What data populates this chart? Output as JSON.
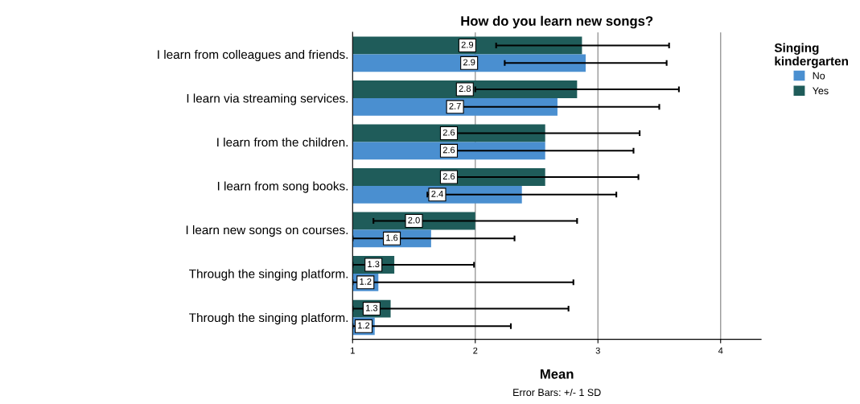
{
  "chart_data": {
    "type": "bar",
    "orientation": "horizontal",
    "title": "How do you learn new songs?",
    "xlabel": "Mean",
    "legend_title": "Singing kindergarten",
    "categories": [
      "I learn from colleagues and friends.",
      "I learn via streaming services.",
      "I learn from the children.",
      "I learn from song books.",
      "I learn new songs on courses.",
      "Through the singing platform.",
      "Through the singing platform."
    ],
    "series": [
      {
        "name": "Yes",
        "color": "#1f5c5a",
        "values": [
          2.87,
          2.83,
          2.57,
          2.57,
          2.0,
          1.34,
          1.31
        ],
        "value_labels": [
          "2.9",
          "2.8",
          "2.6",
          "2.6",
          "2.0",
          "1.3",
          "1.3"
        ],
        "errors": [
          [
            2.17,
            3.58
          ],
          [
            2.0,
            3.66
          ],
          [
            1.77,
            3.34
          ],
          [
            1.83,
            3.33
          ],
          [
            1.17,
            2.83
          ],
          [
            1.0,
            1.99
          ],
          [
            1.0,
            2.76
          ]
        ]
      },
      {
        "name": "No",
        "color": "#4a8fd0",
        "values": [
          2.9,
          2.67,
          2.57,
          2.38,
          1.64,
          1.21,
          1.18
        ],
        "value_labels": [
          "2.9",
          "2.7",
          "2.6",
          "2.4",
          "1.6",
          "1.2",
          "1.2"
        ],
        "errors": [
          [
            2.24,
            3.56
          ],
          [
            1.87,
            3.5
          ],
          [
            1.83,
            3.29
          ],
          [
            1.61,
            3.15
          ],
          [
            1.0,
            2.32
          ],
          [
            1.0,
            2.8
          ],
          [
            1.0,
            2.29
          ]
        ]
      }
    ],
    "xlim": [
      1,
      4.33
    ],
    "xticks": [
      1,
      2,
      3,
      4
    ],
    "grid": "x",
    "legend": "top right",
    "annotations": [
      "Error Bars: +/- 1 SD"
    ]
  }
}
